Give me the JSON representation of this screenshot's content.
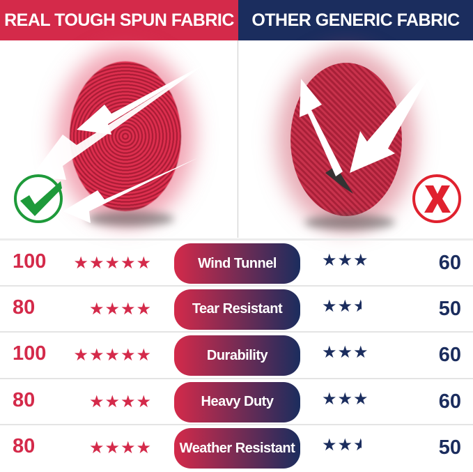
{
  "colors": {
    "red": "#d42a4a",
    "navy": "#1b2d5e"
  },
  "header": {
    "left_title": "REAL TOUGH SPUN FABRIC",
    "right_title": "OTHER GENERIC FABRIC"
  },
  "icons": {
    "left": "check-circle-icon",
    "right": "x-circle-icon"
  },
  "rows": [
    {
      "label": "Wind Tunnel",
      "left_score": "100",
      "left_stars": 5,
      "right_stars": 3,
      "right_score": "60"
    },
    {
      "label": "Tear Resistant",
      "left_score": "80",
      "left_stars": 4,
      "right_stars": 2.5,
      "right_score": "50"
    },
    {
      "label": "Durability",
      "left_score": "100",
      "left_stars": 5,
      "right_stars": 3,
      "right_score": "60"
    },
    {
      "label": "Heavy Duty",
      "left_score": "80",
      "left_stars": 4,
      "right_stars": 3,
      "right_score": "60"
    },
    {
      "label": "Weather Resistant",
      "left_score": "80",
      "left_stars": 4,
      "right_stars": 2.5,
      "right_score": "50"
    }
  ]
}
